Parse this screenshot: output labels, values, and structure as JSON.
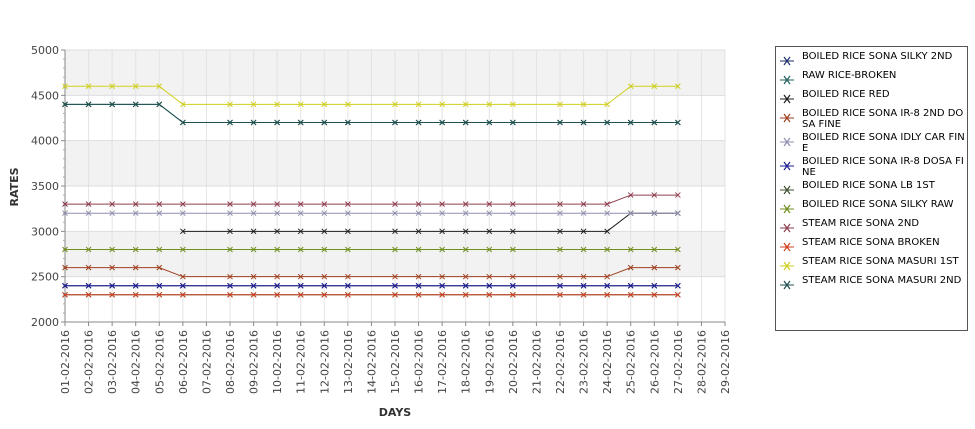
{
  "chart_data": {
    "type": "line",
    "title": "",
    "xlabel": "DAYS",
    "ylabel": "RATES",
    "ylim": [
      2000,
      5000
    ],
    "y_ticks": [
      2000,
      2500,
      3000,
      3500,
      4000,
      4500,
      5000
    ],
    "grid": true,
    "legend_position": "right",
    "categories": [
      "01-02-2016",
      "02-02-2016",
      "03-02-2016",
      "04-02-2016",
      "05-02-2016",
      "06-02-2016",
      "07-02-2016",
      "08-02-2016",
      "09-02-2016",
      "10-02-2016",
      "11-02-2016",
      "12-02-2016",
      "13-02-2016",
      "14-02-2016",
      "15-02-2016",
      "16-02-2016",
      "17-02-2016",
      "18-02-2016",
      "19-02-2016",
      "20-02-2016",
      "21-02-2016",
      "22-02-2016",
      "23-02-2016",
      "24-02-2016",
      "25-02-2016",
      "26-02-2016",
      "27-02-2016",
      "28-02-2016",
      "29-02-2016"
    ],
    "series": [
      {
        "name": "BOILED RICE SONA SILKY 2ND",
        "color": "#1f2f6f",
        "values": [
          2400,
          2400,
          2400,
          2400,
          2400,
          2400,
          null,
          2400,
          2400,
          2400,
          2400,
          2400,
          2400,
          null,
          2400,
          2400,
          2400,
          2400,
          2400,
          2400,
          null,
          2400,
          2400,
          2400,
          2400,
          2400,
          2400,
          null,
          null
        ]
      },
      {
        "name": "RAW RICE-BROKEN",
        "color": "#1f5f5f",
        "values": [
          4400,
          4400,
          4400,
          4400,
          4400,
          4200,
          null,
          4200,
          4200,
          4200,
          4200,
          4200,
          4200,
          null,
          4200,
          4200,
          4200,
          4200,
          4200,
          4200,
          null,
          4200,
          4200,
          4200,
          4200,
          4200,
          4200,
          null,
          null
        ]
      },
      {
        "name": "BOILED RICE RED",
        "color": "#1f1f1f",
        "values": [
          null,
          null,
          null,
          null,
          null,
          3000,
          null,
          3000,
          3000,
          3000,
          3000,
          3000,
          3000,
          null,
          3000,
          3000,
          3000,
          3000,
          3000,
          3000,
          null,
          3000,
          3000,
          3000,
          3200,
          3200,
          3200,
          null,
          null
        ]
      },
      {
        "name": "BOILED RICE SONA  IR-8 2ND DOSA FINE",
        "color": "#9f3f1f",
        "values": [
          2600,
          2600,
          2600,
          2600,
          2600,
          2500,
          null,
          2500,
          2500,
          2500,
          2500,
          2500,
          2500,
          null,
          2500,
          2500,
          2500,
          2500,
          2500,
          2500,
          null,
          2500,
          2500,
          2500,
          2600,
          2600,
          2600,
          null,
          null
        ]
      },
      {
        "name": "BOILED RICE SONA IDLY CAR FINE",
        "color": "#8f8faf",
        "values": [
          3200,
          3200,
          3200,
          3200,
          3200,
          3200,
          null,
          3200,
          3200,
          3200,
          3200,
          3200,
          3200,
          null,
          3200,
          3200,
          3200,
          3200,
          3200,
          3200,
          null,
          3200,
          3200,
          3200,
          3200,
          3200,
          3200,
          null,
          null
        ]
      },
      {
        "name": "BOILED RICE SONA IR-8 DOSA FINE",
        "color": "#1f1f8f",
        "values": [
          2400,
          2400,
          2400,
          2400,
          2400,
          2400,
          null,
          2400,
          2400,
          2400,
          2400,
          2400,
          2400,
          null,
          2400,
          2400,
          2400,
          2400,
          2400,
          2400,
          null,
          2400,
          2400,
          2400,
          2400,
          2400,
          2400,
          null,
          null
        ]
      },
      {
        "name": "BOILED RICE SONA LB 1ST",
        "color": "#3f4f2f",
        "values": [
          2300,
          2300,
          2300,
          2300,
          2300,
          2300,
          null,
          2300,
          2300,
          2300,
          2300,
          2300,
          2300,
          null,
          2300,
          2300,
          2300,
          2300,
          2300,
          2300,
          null,
          2300,
          2300,
          2300,
          2300,
          2300,
          2300,
          null,
          null
        ]
      },
      {
        "name": "BOILED RICE SONA SILKY RAW",
        "color": "#6f8f1f",
        "values": [
          2800,
          2800,
          2800,
          2800,
          2800,
          2800,
          null,
          2800,
          2800,
          2800,
          2800,
          2800,
          2800,
          null,
          2800,
          2800,
          2800,
          2800,
          2800,
          2800,
          null,
          2800,
          2800,
          2800,
          2800,
          2800,
          2800,
          null,
          null
        ]
      },
      {
        "name": "STEAM RICE SONA 2ND",
        "color": "#8f3f4f",
        "values": [
          3300,
          3300,
          3300,
          3300,
          3300,
          3300,
          null,
          3300,
          3300,
          3300,
          3300,
          3300,
          3300,
          null,
          3300,
          3300,
          3300,
          3300,
          3300,
          3300,
          null,
          3300,
          3300,
          3300,
          3400,
          3400,
          3400,
          null,
          null
        ]
      },
      {
        "name": "STEAM RICE SONA BROKEN",
        "color": "#cf3f1f",
        "values": [
          2300,
          2300,
          2300,
          2300,
          2300,
          2300,
          null,
          2300,
          2300,
          2300,
          2300,
          2300,
          2300,
          null,
          2300,
          2300,
          2300,
          2300,
          2300,
          2300,
          null,
          2300,
          2300,
          2300,
          2300,
          2300,
          2300,
          null,
          null
        ]
      },
      {
        "name": "STEAM RICE SONA MASURI 1ST",
        "color": "#cfcf1f",
        "values": [
          4600,
          4600,
          4600,
          4600,
          4600,
          4400,
          null,
          4400,
          4400,
          4400,
          4400,
          4400,
          4400,
          null,
          4400,
          4400,
          4400,
          4400,
          4400,
          4400,
          null,
          4400,
          4400,
          4400,
          4600,
          4600,
          4600,
          null,
          null
        ]
      },
      {
        "name": "STEAM RICE SONA MASURI 2ND",
        "color": "#1f4f4f",
        "values": [
          4400,
          4400,
          4400,
          4400,
          4400,
          4200,
          null,
          4200,
          4200,
          4200,
          4200,
          4200,
          4200,
          null,
          4200,
          4200,
          4200,
          4200,
          4200,
          4200,
          null,
          4200,
          4200,
          4200,
          4200,
          4200,
          4200,
          null,
          null
        ]
      }
    ]
  },
  "legend": {
    "items": [
      {
        "label": " BOILED RICE SONA SILKY 2ND",
        "color": "#1f2f6f"
      },
      {
        "label": " RAW RICE-BROKEN",
        "color": "#1f5f5f"
      },
      {
        "label": "BOILED RICE RED",
        "color": "#1f1f1f"
      },
      {
        "label": "BOILED RICE SONA  IR-8 2ND DOSA FINE",
        "color": "#9f3f1f"
      },
      {
        "label": "BOILED RICE SONA IDLY CAR FINE",
        "color": "#8f8faf"
      },
      {
        "label": "BOILED RICE SONA IR-8 DOSA FINE",
        "color": "#1f1f8f"
      },
      {
        "label": "BOILED RICE SONA LB 1ST",
        "color": "#3f4f2f"
      },
      {
        "label": "BOILED RICE SONA SILKY RAW",
        "color": "#6f8f1f"
      },
      {
        "label": "STEAM RICE SONA 2ND",
        "color": "#8f3f4f"
      },
      {
        "label": "STEAM RICE SONA BROKEN",
        "color": "#cf3f1f"
      },
      {
        "label": "STEAM RICE SONA MASURI 1ST",
        "color": "#cfcf1f"
      },
      {
        "label": "STEAM RICE SONA MASURI 2ND",
        "color": "#1f4f4f"
      }
    ]
  }
}
